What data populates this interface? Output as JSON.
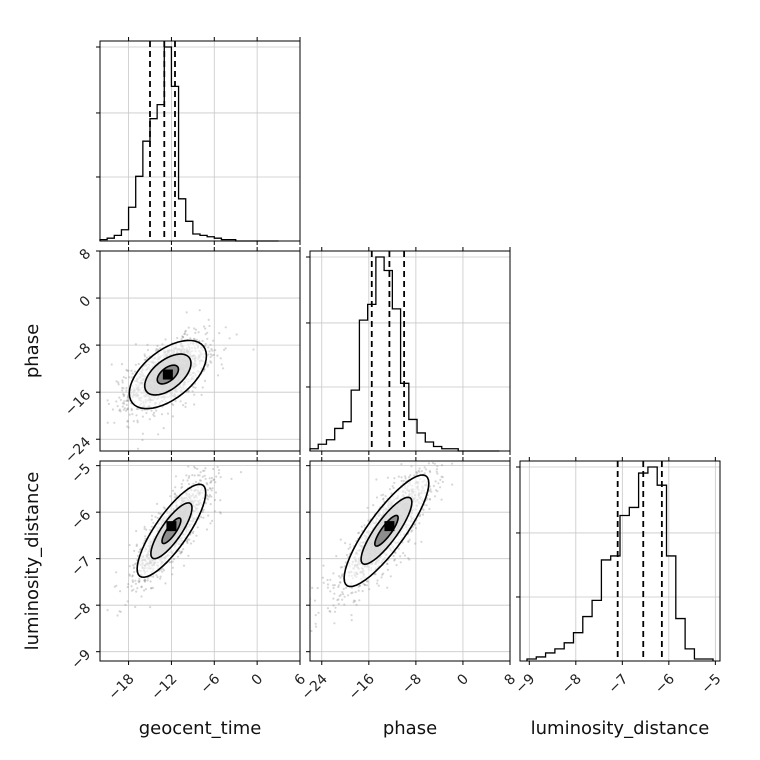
{
  "chart_data": {
    "type": "corner",
    "parameters": [
      "geocent_time",
      "phase",
      "luminosity_distance"
    ],
    "axis_labels": {
      "x": [
        "geocent_time",
        "phase",
        "luminosity_distance"
      ],
      "y": [
        "phase",
        "luminosity_distance"
      ]
    },
    "ranges": {
      "geocent_time": [
        -22,
        6
      ],
      "phase": [
        -26,
        8
      ],
      "luminosity_distance": [
        -9.2,
        -4.9
      ]
    },
    "ticks": {
      "geocent_time": [
        -18,
        -12,
        -6,
        0,
        6
      ],
      "phase": [
        -24,
        -16,
        -8,
        0,
        8
      ],
      "luminosity_distance": [
        -9,
        -8,
        -7,
        -6,
        -5
      ]
    },
    "tick_labels": {
      "geocent_time": [
        "−18",
        "−12",
        "−6",
        "0",
        "6"
      ],
      "phase": [
        "−24",
        "−16",
        "−8",
        "0",
        "8"
      ],
      "luminosity_distance": [
        "−9",
        "−8",
        "−7",
        "−6",
        "−5"
      ]
    },
    "quantiles": {
      "geocent_time": [
        -15.0,
        -13.0,
        -11.5
      ],
      "phase": [
        -15.5,
        -12.5,
        -10.0
      ],
      "luminosity_distance": [
        -7.1,
        -6.55,
        -6.15
      ]
    },
    "histograms": {
      "geocent_time": {
        "bin_edges": [
          -22,
          -21,
          -20,
          -19,
          -18,
          -17,
          -16,
          -15,
          -14,
          -13,
          -12,
          -11,
          -10,
          -9,
          -8,
          -7,
          -6,
          -5,
          -4,
          -3,
          -2,
          -1,
          0,
          1,
          2,
          3
        ],
        "counts": [
          1,
          2,
          4,
          8,
          24,
          46,
          71,
          87,
          97,
          138,
          110,
          30,
          14,
          5,
          4,
          3,
          2,
          1,
          1,
          0,
          0,
          0,
          0,
          0,
          0
        ]
      },
      "phase": {
        "bin_edges": [
          -26,
          -24.6,
          -23.2,
          -21.8,
          -20.4,
          -19,
          -17.6,
          -16.2,
          -14.8,
          -13.4,
          -12,
          -10.6,
          -9.2,
          -7.8,
          -6.4,
          -5,
          -3.6,
          -2.2,
          -0.8,
          0.6,
          2,
          3.4,
          4.8,
          6.2
        ],
        "counts": [
          1,
          3,
          5,
          10,
          13,
          27,
          58,
          65,
          86,
          80,
          63,
          30,
          14,
          8,
          4,
          2,
          1,
          1,
          0,
          0,
          0,
          0,
          0
        ]
      },
      "luminosity_distance": {
        "bin_edges": [
          -9.05,
          -8.85,
          -8.65,
          -8.45,
          -8.25,
          -8.05,
          -7.85,
          -7.65,
          -7.45,
          -7.25,
          -7.05,
          -6.85,
          -6.65,
          -6.45,
          -6.25,
          -6.05,
          -5.85,
          -5.65,
          -5.45,
          -5.25,
          -5.05
        ],
        "counts": [
          1,
          2,
          4,
          6,
          9,
          14,
          22,
          30,
          50,
          52,
          72,
          76,
          93,
          96,
          87,
          52,
          21,
          6,
          1,
          1
        ]
      }
    },
    "pairs": [
      {
        "x": "geocent_time",
        "y": "phase",
        "center": [
          -12.5,
          -13.0
        ],
        "spread": [
          2.7,
          2.9
        ],
        "correlation": 0.55,
        "density_peak": [
          -12.5,
          -13.0
        ]
      },
      {
        "x": "geocent_time",
        "y": "luminosity_distance",
        "center": [
          -12.0,
          -6.4
        ],
        "spread": [
          2.4,
          0.5
        ],
        "correlation": 0.82,
        "density_peak": [
          -12.0,
          -6.3
        ]
      },
      {
        "x": "phase",
        "y": "luminosity_distance",
        "center": [
          -13.0,
          -6.4
        ],
        "spread": [
          3.6,
          0.6
        ],
        "correlation": 0.85,
        "density_peak": [
          -12.5,
          -6.3
        ]
      }
    ],
    "grid": true,
    "legend": "none"
  }
}
